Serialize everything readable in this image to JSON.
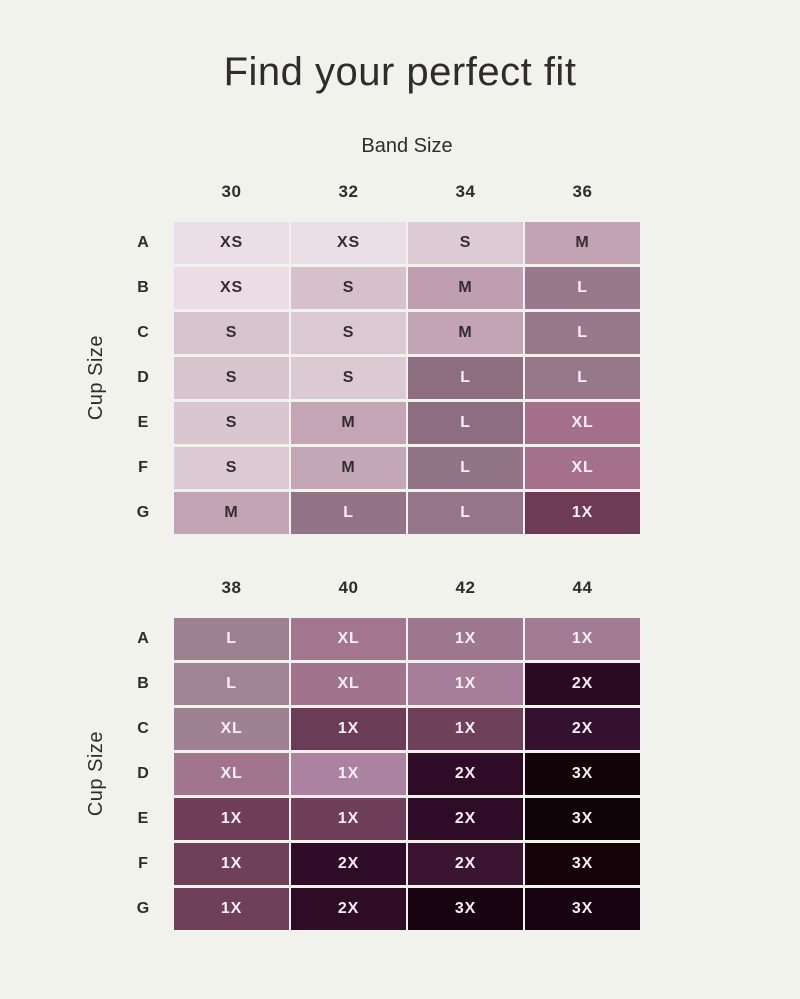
{
  "page": {
    "title": "Find your perfect fit",
    "band_axis_label": "Band Size",
    "cup_axis_label": "Cup Size",
    "background_color": "#f2f2ec",
    "heading_color": "#2e2d2b",
    "dark_cell_text_color": "#322d32",
    "light_cell_text_color": "#f7eef4"
  },
  "chart_data": {
    "type": "heatmap",
    "title": "Find your perfect fit",
    "xlabel": "Band Size",
    "ylabel": "Cup Size",
    "legend_position": "none",
    "grid": false,
    "value_scale": [
      "XS",
      "S",
      "M",
      "L",
      "XL",
      "1X",
      "2X",
      "3X"
    ],
    "color_encoding": "cell shade darkens from XS (lightest pink) to 3X (near black plum)",
    "tables": [
      {
        "name": "bands-30-36",
        "band_sizes": [
          "30",
          "32",
          "34",
          "36"
        ],
        "cup_sizes": [
          "A",
          "B",
          "C",
          "D",
          "E",
          "F",
          "G"
        ],
        "rows": [
          {
            "cup": "A",
            "cells": [
              {
                "size": "XS",
                "bg": "#ecdee6",
                "fg": "#322d32"
              },
              {
                "size": "XS",
                "bg": "#ecdee6",
                "fg": "#322d32"
              },
              {
                "size": "S",
                "bg": "#dccbd5",
                "fg": "#322d32"
              },
              {
                "size": "M",
                "bg": "#c2a3b4",
                "fg": "#322d32"
              }
            ]
          },
          {
            "cup": "B",
            "cells": [
              {
                "size": "XS",
                "bg": "#ebdce5",
                "fg": "#322d32"
              },
              {
                "size": "S",
                "bg": "#d5c0cc",
                "fg": "#322d32"
              },
              {
                "size": "M",
                "bg": "#bf9fb1",
                "fg": "#322d32"
              },
              {
                "size": "L",
                "bg": "#97798b",
                "fg": "#f7eef4"
              }
            ]
          },
          {
            "cup": "C",
            "cells": [
              {
                "size": "S",
                "bg": "#d7c3ce",
                "fg": "#322d32"
              },
              {
                "size": "S",
                "bg": "#dac8d2",
                "fg": "#322d32"
              },
              {
                "size": "M",
                "bg": "#c2a4b4",
                "fg": "#322d32"
              },
              {
                "size": "L",
                "bg": "#97798b",
                "fg": "#f7eef4"
              }
            ]
          },
          {
            "cup": "D",
            "cells": [
              {
                "size": "S",
                "bg": "#d8c4cf",
                "fg": "#322d32"
              },
              {
                "size": "S",
                "bg": "#dbc9d3",
                "fg": "#322d32"
              },
              {
                "size": "L",
                "bg": "#8d6e81",
                "fg": "#f7eef4"
              },
              {
                "size": "L",
                "bg": "#967889",
                "fg": "#f7eef4"
              }
            ]
          },
          {
            "cup": "E",
            "cells": [
              {
                "size": "S",
                "bg": "#d9c6d1",
                "fg": "#322d32"
              },
              {
                "size": "M",
                "bg": "#c3a5b5",
                "fg": "#322d32"
              },
              {
                "size": "L",
                "bg": "#8d6e81",
                "fg": "#f7eef4"
              },
              {
                "size": "XL",
                "bg": "#a36f8a",
                "fg": "#f7eef4"
              }
            ]
          },
          {
            "cup": "F",
            "cells": [
              {
                "size": "S",
                "bg": "#dbc9d3",
                "fg": "#322d32"
              },
              {
                "size": "M",
                "bg": "#c3a7b6",
                "fg": "#322d32"
              },
              {
                "size": "L",
                "bg": "#917486",
                "fg": "#f7eef4"
              },
              {
                "size": "XL",
                "bg": "#a4708b",
                "fg": "#f7eef4"
              }
            ]
          },
          {
            "cup": "G",
            "cells": [
              {
                "size": "M",
                "bg": "#c2a4b4",
                "fg": "#322d32"
              },
              {
                "size": "L",
                "bg": "#927387",
                "fg": "#f7eef4"
              },
              {
                "size": "L",
                "bg": "#947589",
                "fg": "#f7eef4"
              },
              {
                "size": "1X",
                "bg": "#6d3a57",
                "fg": "#f7eef4"
              }
            ]
          }
        ]
      },
      {
        "name": "bands-38-44",
        "band_sizes": [
          "38",
          "40",
          "42",
          "44"
        ],
        "cup_sizes": [
          "A",
          "B",
          "C",
          "D",
          "E",
          "F",
          "G"
        ],
        "rows": [
          {
            "cup": "A",
            "cells": [
              {
                "size": "L",
                "bg": "#9d8191",
                "fg": "#f7eef4"
              },
              {
                "size": "XL",
                "bg": "#a3758e",
                "fg": "#f7eef4"
              },
              {
                "size": "1X",
                "bg": "#9d7690",
                "fg": "#f7eef4"
              },
              {
                "size": "1X",
                "bg": "#a17a94",
                "fg": "#f7eef4"
              }
            ]
          },
          {
            "cup": "B",
            "cells": [
              {
                "size": "L",
                "bg": "#a08394",
                "fg": "#f7eef4"
              },
              {
                "size": "XL",
                "bg": "#a1738c",
                "fg": "#f7eef4"
              },
              {
                "size": "1X",
                "bg": "#a67e99",
                "fg": "#f7eef4"
              },
              {
                "size": "2X",
                "bg": "#2b0a24",
                "fg": "#f7eef4"
              }
            ]
          },
          {
            "cup": "C",
            "cells": [
              {
                "size": "XL",
                "bg": "#9e8294",
                "fg": "#f7eef4"
              },
              {
                "size": "1X",
                "bg": "#6b3c58",
                "fg": "#f7eef4"
              },
              {
                "size": "1X",
                "bg": "#6f4059",
                "fg": "#f7eef4"
              },
              {
                "size": "2X",
                "bg": "#351130",
                "fg": "#f7eef4"
              }
            ]
          },
          {
            "cup": "D",
            "cells": [
              {
                "size": "XL",
                "bg": "#a1758e",
                "fg": "#f7eef4"
              },
              {
                "size": "1X",
                "bg": "#ab82a0",
                "fg": "#f7eef4"
              },
              {
                "size": "2X",
                "bg": "#2e0c28",
                "fg": "#f7eef4"
              },
              {
                "size": "3X",
                "bg": "#120308",
                "fg": "#f7eef4"
              }
            ]
          },
          {
            "cup": "E",
            "cells": [
              {
                "size": "1X",
                "bg": "#6e3e5b",
                "fg": "#f7eef4"
              },
              {
                "size": "1X",
                "bg": "#6e3e5b",
                "fg": "#f7eef4"
              },
              {
                "size": "2X",
                "bg": "#2e0c28",
                "fg": "#f7eef4"
              },
              {
                "size": "3X",
                "bg": "#0f0308",
                "fg": "#f7eef4"
              }
            ]
          },
          {
            "cup": "F",
            "cells": [
              {
                "size": "1X",
                "bg": "#6f4059",
                "fg": "#f7eef4"
              },
              {
                "size": "2X",
                "bg": "#2f0d28",
                "fg": "#f7eef4"
              },
              {
                "size": "2X",
                "bg": "#3a1430",
                "fg": "#f7eef4"
              },
              {
                "size": "3X",
                "bg": "#150309",
                "fg": "#f7eef4"
              }
            ]
          },
          {
            "cup": "G",
            "cells": [
              {
                "size": "1X",
                "bg": "#6f4059",
                "fg": "#f7eef4"
              },
              {
                "size": "2X",
                "bg": "#2e0c26",
                "fg": "#f7eef4"
              },
              {
                "size": "3X",
                "bg": "#170410",
                "fg": "#f7eef4"
              },
              {
                "size": "3X",
                "bg": "#170410",
                "fg": "#f7eef4"
              }
            ]
          }
        ]
      }
    ]
  }
}
